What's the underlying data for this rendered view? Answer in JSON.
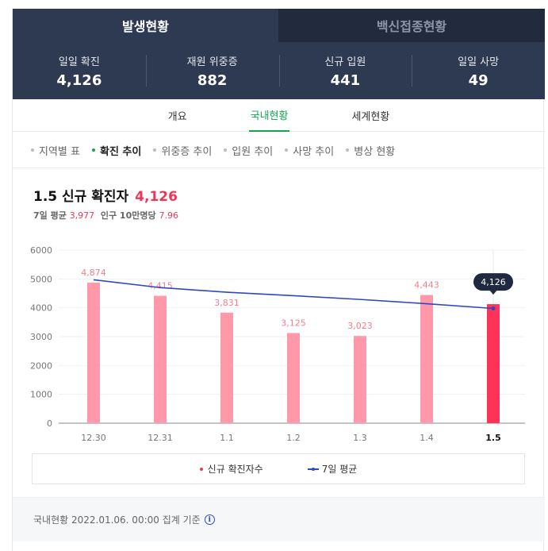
{
  "top_tabs": {
    "active": "발생현황",
    "inactive": "백신접종현황"
  },
  "stats": [
    {
      "label": "일일 확진",
      "value": "4,126"
    },
    {
      "label": "재원 위중증",
      "value": "882"
    },
    {
      "label": "신규 입원",
      "value": "441"
    },
    {
      "label": "일일 사망",
      "value": "49"
    }
  ],
  "sub_tabs": [
    "개요",
    "국내현황",
    "세계현황"
  ],
  "filters": [
    "지역별 표",
    "확진 추이",
    "위중증 추이",
    "입원 추이",
    "사망 추이",
    "병상 현황"
  ],
  "chart_header": {
    "title": "1.5 신규 확진자",
    "count": "4,126",
    "avg_label": "7일 평균",
    "avg_value": "3,977",
    "per_label": "인구 10만명당",
    "per_value": "7.96"
  },
  "colors": {
    "bar": "#ff98a8",
    "bar_highlight": "#ff3358",
    "line": "#2b49c7",
    "accent": "#12a650",
    "header_bg": "#2e3a52"
  },
  "chart_data": {
    "type": "bar",
    "categories": [
      "12.30",
      "12.31",
      "1.1",
      "1.2",
      "1.3",
      "1.4",
      "1.5"
    ],
    "series": [
      {
        "name": "신규 확진자수",
        "values": [
          4874,
          4415,
          3831,
          3125,
          3023,
          4443,
          4126
        ]
      },
      {
        "name": "7일 평균",
        "type": "line",
        "values": [
          4970,
          4700,
          4540,
          4420,
          4290,
          4140,
          3977
        ]
      }
    ],
    "data_labels": [
      "4,874",
      "4,415",
      "3,831",
      "3,125",
      "3,023",
      "4,443",
      "4,126"
    ],
    "highlight_label": "4,126",
    "y_ticks": [
      0,
      1000,
      2000,
      3000,
      4000,
      5000,
      6000
    ],
    "ylim": [
      0,
      6000
    ],
    "grid": true
  },
  "legend": {
    "bars": "신규 확진자수",
    "line": "7일 평균"
  },
  "footer": {
    "text": "국내현황 2022.01.06. 00:00 집계 기준",
    "icon": "i"
  }
}
